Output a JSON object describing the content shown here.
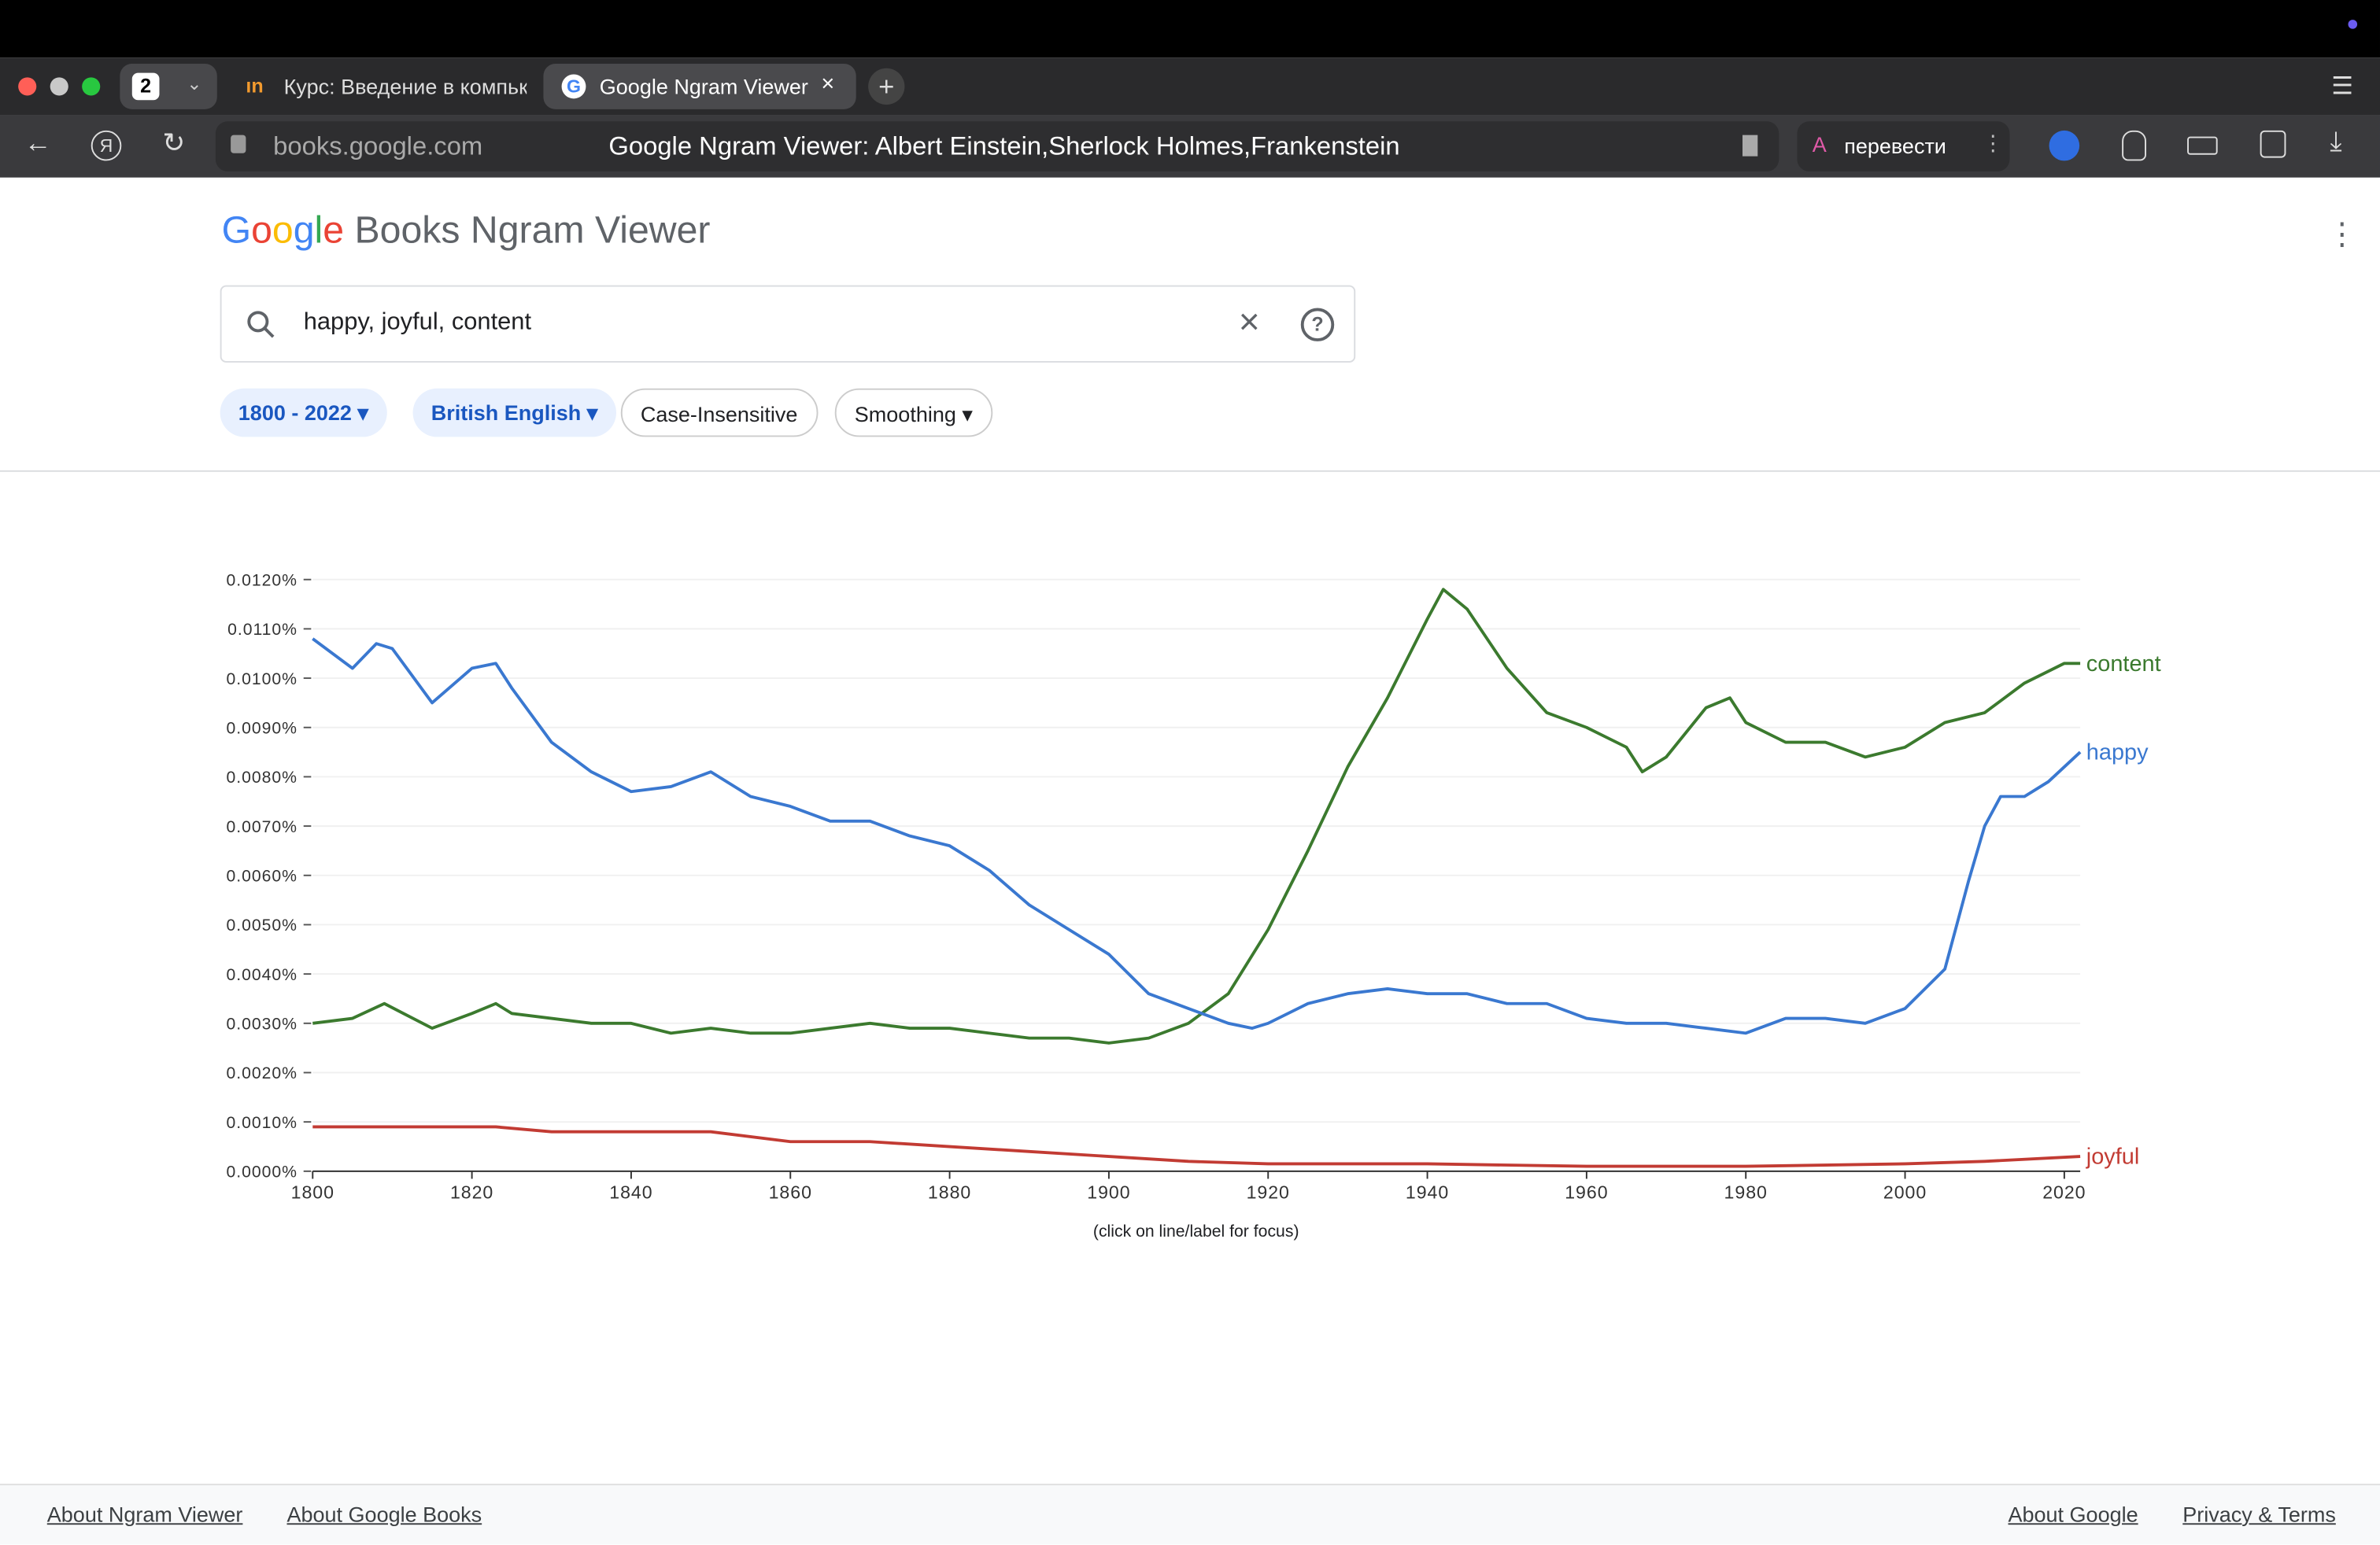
{
  "browser": {
    "tab_count": "2",
    "tabs": [
      "Курс: Введение в компьк",
      "Google Ngram Viewer: A"
    ],
    "url": "books.google.com",
    "page_title": "Google Ngram Viewer: Albert Einstein,Sherlock Holmes,Frankenstein",
    "translate": "перевести"
  },
  "header": {
    "logo": "Google",
    "product": "Books Ngram Viewer"
  },
  "search": {
    "query": "happy, joyful, content"
  },
  "filters": [
    "1800 - 2022",
    "British English",
    "Case-Insensitive",
    "Smoothing"
  ],
  "chart_data": {
    "type": "line",
    "note": "(click on line/label for focus)",
    "xlim": [
      1800,
      2022
    ],
    "xticks": [
      1800,
      1820,
      1840,
      1860,
      1880,
      1900,
      1920,
      1940,
      1960,
      1980,
      2000,
      2020
    ],
    "ylim": [
      0,
      0.012
    ],
    "yticks": [
      {
        "value": 0,
        "label": "0.0000%"
      },
      {
        "value": 0.001,
        "label": "0.0010%"
      },
      {
        "value": 0.002,
        "label": "0.0020%"
      },
      {
        "value": 0.003,
        "label": "0.0030%"
      },
      {
        "value": 0.004,
        "label": "0.0040%"
      },
      {
        "value": 0.005,
        "label": "0.0050%"
      },
      {
        "value": 0.006,
        "label": "0.0060%"
      },
      {
        "value": 0.007,
        "label": "0.0070%"
      },
      {
        "value": 0.008,
        "label": "0.0080%"
      },
      {
        "value": 0.009,
        "label": "0.0090%"
      },
      {
        "value": 0.01,
        "label": "0.0100%"
      },
      {
        "value": 0.011,
        "label": "0.0110%"
      },
      {
        "value": 0.012,
        "label": "0.0120%"
      }
    ],
    "grid": true,
    "series": [
      {
        "name": "content",
        "color": "#3b7a2e",
        "x": [
          1800,
          1805,
          1809,
          1815,
          1820,
          1823,
          1825,
          1830,
          1835,
          1840,
          1845,
          1850,
          1855,
          1860,
          1865,
          1870,
          1875,
          1880,
          1885,
          1890,
          1895,
          1900,
          1905,
          1910,
          1915,
          1920,
          1925,
          1930,
          1935,
          1940,
          1942,
          1945,
          1950,
          1955,
          1960,
          1965,
          1967,
          1970,
          1975,
          1978,
          1980,
          1985,
          1990,
          1995,
          2000,
          2005,
          2010,
          2015,
          2020,
          2022
        ],
        "values": [
          0.003,
          0.0031,
          0.0034,
          0.0029,
          0.0032,
          0.0034,
          0.0032,
          0.0031,
          0.003,
          0.003,
          0.0028,
          0.0029,
          0.0028,
          0.0028,
          0.0029,
          0.003,
          0.0029,
          0.0029,
          0.0028,
          0.0027,
          0.0027,
          0.0026,
          0.0027,
          0.003,
          0.0036,
          0.0049,
          0.0065,
          0.0082,
          0.0096,
          0.0112,
          0.0118,
          0.0114,
          0.0102,
          0.0093,
          0.009,
          0.0086,
          0.0081,
          0.0084,
          0.0094,
          0.0096,
          0.0091,
          0.0087,
          0.0087,
          0.0084,
          0.0086,
          0.0091,
          0.0093,
          0.0099,
          0.0103,
          0.0103
        ]
      },
      {
        "name": "happy",
        "color": "#3a78d0",
        "x": [
          1800,
          1805,
          1808,
          1810,
          1815,
          1820,
          1823,
          1825,
          1830,
          1835,
          1840,
          1845,
          1850,
          1855,
          1860,
          1865,
          1870,
          1875,
          1880,
          1885,
          1890,
          1895,
          1900,
          1905,
          1910,
          1915,
          1918,
          1920,
          1925,
          1930,
          1935,
          1940,
          1945,
          1950,
          1955,
          1960,
          1965,
          1970,
          1975,
          1980,
          1985,
          1990,
          1995,
          2000,
          2005,
          2008,
          2010,
          2012,
          2015,
          2018,
          2022
        ],
        "values": [
          0.0108,
          0.0102,
          0.0107,
          0.0106,
          0.0095,
          0.0102,
          0.0103,
          0.0098,
          0.0087,
          0.0081,
          0.0077,
          0.0078,
          0.0081,
          0.0076,
          0.0074,
          0.0071,
          0.0071,
          0.0068,
          0.0066,
          0.0061,
          0.0054,
          0.0049,
          0.0044,
          0.0036,
          0.0033,
          0.003,
          0.0029,
          0.003,
          0.0034,
          0.0036,
          0.0037,
          0.0036,
          0.0036,
          0.0034,
          0.0034,
          0.0031,
          0.003,
          0.003,
          0.0029,
          0.0028,
          0.0031,
          0.0031,
          0.003,
          0.0033,
          0.0041,
          0.0059,
          0.007,
          0.0076,
          0.0076,
          0.0079,
          0.0085
        ]
      },
      {
        "name": "joyful",
        "color": "#c23b33",
        "x": [
          1800,
          1810,
          1820,
          1823,
          1830,
          1840,
          1850,
          1860,
          1870,
          1880,
          1890,
          1900,
          1910,
          1920,
          1940,
          1960,
          1980,
          2000,
          2010,
          2022
        ],
        "values": [
          0.0009,
          0.0009,
          0.0009,
          0.0009,
          0.0008,
          0.0008,
          0.0008,
          0.0006,
          0.0006,
          0.0005,
          0.0004,
          0.0003,
          0.0002,
          0.00015,
          0.00015,
          0.0001,
          0.0001,
          0.00015,
          0.0002,
          0.0003
        ]
      }
    ]
  },
  "footer": {
    "left": [
      "About Ngram Viewer",
      "About Google Books"
    ],
    "right": [
      "About Google",
      "Privacy & Terms"
    ]
  }
}
